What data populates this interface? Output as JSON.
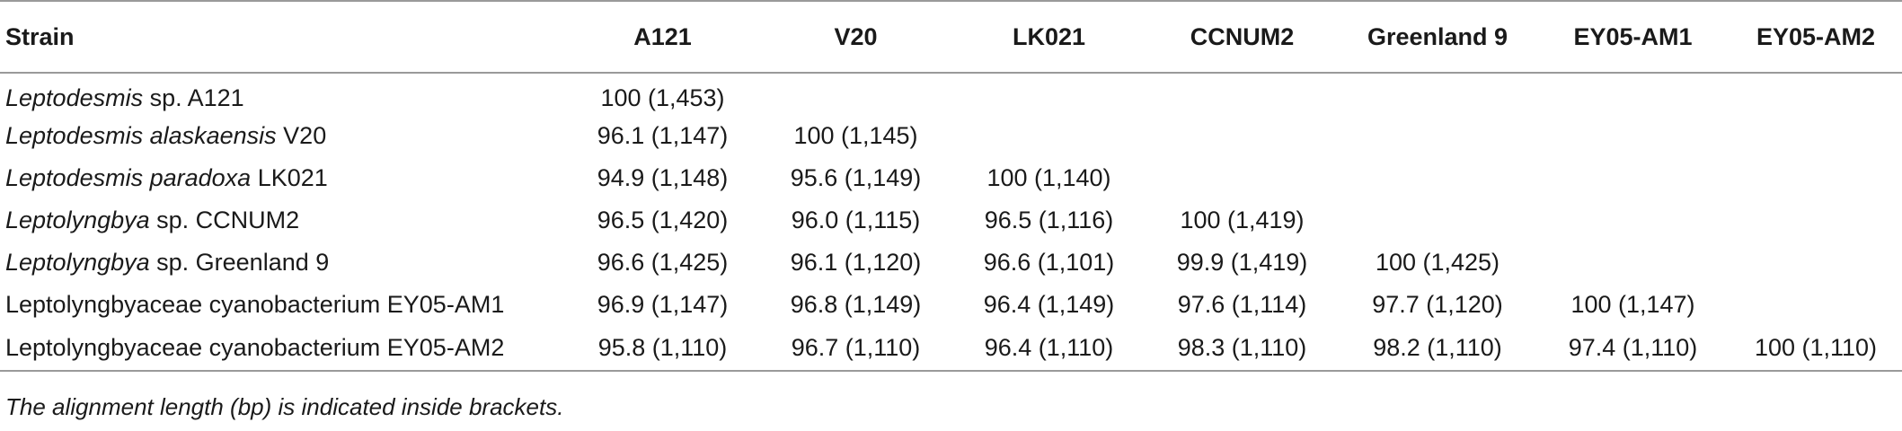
{
  "table": {
    "headers": [
      "Strain",
      "A121",
      "V20",
      "LK021",
      "CCNUM2",
      "Greenland 9",
      "EY05-AM1",
      "EY05-AM2"
    ],
    "rows": [
      {
        "italic": "Leptodesmis",
        "rest": " sp. A121",
        "cells": [
          "100 (1,453)",
          "",
          "",
          "",
          "",
          "",
          ""
        ]
      },
      {
        "italic": "Leptodesmis alaskaensis",
        "rest": " V20",
        "cells": [
          "96.1 (1,147)",
          "100 (1,145)",
          "",
          "",
          "",
          "",
          ""
        ]
      },
      {
        "italic": "Leptodesmis paradoxa",
        "rest": " LK021",
        "cells": [
          "94.9 (1,148)",
          "95.6 (1,149)",
          "100 (1,140)",
          "",
          "",
          "",
          ""
        ]
      },
      {
        "italic": "Leptolyngbya",
        "rest": " sp. CCNUM2",
        "cells": [
          "96.5 (1,420)",
          "96.0 (1,115)",
          "96.5 (1,116)",
          "100 (1,419)",
          "",
          "",
          ""
        ]
      },
      {
        "italic": "Leptolyngbya",
        "rest": " sp. Greenland 9",
        "cells": [
          "96.6 (1,425)",
          "96.1 (1,120)",
          "96.6 (1,101)",
          "99.9 (1,419)",
          "100 (1,425)",
          "",
          ""
        ]
      },
      {
        "italic": "",
        "rest": "Leptolyngbyaceae cyanobacterium EY05-AM1",
        "cells": [
          "96.9 (1,147)",
          "96.8 (1,149)",
          "96.4 (1,149)",
          "97.6 (1,114)",
          "97.7 (1,120)",
          "100 (1,147)",
          ""
        ]
      },
      {
        "italic": "",
        "rest": "Leptolyngbyaceae cyanobacterium EY05-AM2",
        "cells": [
          "95.8 (1,110)",
          "96.7 (1,110)",
          "96.4 (1,110)",
          "98.3 (1,110)",
          "98.2 (1,110)",
          "97.4 (1,110)",
          "100 (1,110)"
        ]
      }
    ]
  },
  "footnote": "The alignment length (bp) is indicated inside brackets."
}
